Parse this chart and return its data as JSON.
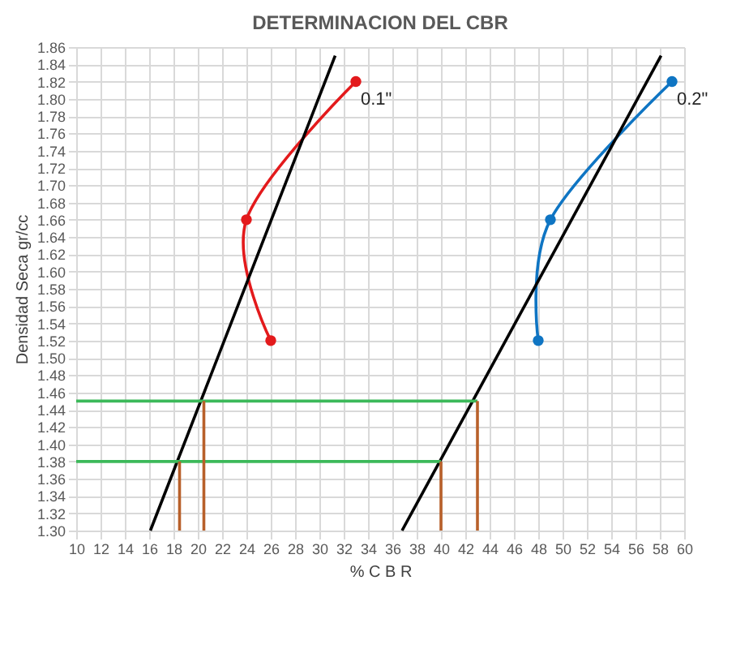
{
  "chart_data": {
    "type": "line",
    "title": "DETERMINACION DEL CBR",
    "xlabel": "% C B R",
    "ylabel": "Densidad Seca gr/cc",
    "xlim": [
      10,
      60
    ],
    "xticks": [
      10,
      12,
      14,
      16,
      18,
      20,
      22,
      24,
      26,
      28,
      30,
      32,
      34,
      36,
      38,
      40,
      42,
      44,
      46,
      48,
      50,
      52,
      54,
      56,
      58,
      60
    ],
    "ylim": [
      1.3,
      1.86
    ],
    "yticks": [
      {
        "value": 1.3,
        "label": "1.30"
      },
      {
        "value": 1.32,
        "label": "1.32"
      },
      {
        "value": 1.34,
        "label": "1.34"
      },
      {
        "value": 1.36,
        "label": "1.36"
      },
      {
        "value": 1.38,
        "label": "1.38"
      },
      {
        "value": 1.4,
        "label": "1.40"
      },
      {
        "value": 1.42,
        "label": "1.42"
      },
      {
        "value": 1.44,
        "label": "1.44"
      },
      {
        "value": 1.46,
        "label": "1.46"
      },
      {
        "value": 1.48,
        "label": "1.48"
      },
      {
        "value": 1.5,
        "label": "1.50"
      },
      {
        "value": 1.52,
        "label": "1.52"
      },
      {
        "value": 1.54,
        "label": "1.54"
      },
      {
        "value": 1.56,
        "label": "1.56"
      },
      {
        "value": 1.58,
        "label": "1.58"
      },
      {
        "value": 1.6,
        "label": "1.60"
      },
      {
        "value": 1.62,
        "label": "1.62"
      },
      {
        "value": 1.64,
        "label": "1.64"
      },
      {
        "value": 1.66,
        "label": "1.66"
      },
      {
        "value": 1.68,
        "label": "1.68"
      },
      {
        "value": 1.7,
        "label": "1.70"
      },
      {
        "value": 1.72,
        "label": "1.72"
      },
      {
        "value": 1.74,
        "label": "1.74"
      },
      {
        "value": 1.76,
        "label": "1.76"
      },
      {
        "value": 1.78,
        "label": "1.78"
      },
      {
        "value": 1.8,
        "label": "1.80"
      },
      {
        "value": 1.82,
        "label": "1.82"
      },
      {
        "value": 1.84,
        "label": "1.84"
      },
      {
        "value": 1.86,
        "label": "1.86"
      }
    ],
    "grid": true,
    "line_style": "solid",
    "series": [
      {
        "color": "#e31a1c",
        "marker": "circle",
        "x": [
          26,
          24,
          33
        ],
        "values": [
          1.52,
          1.66,
          1.82
        ]
      },
      {
        "color": "#0f75c3",
        "marker": "circle",
        "x": [
          48,
          49,
          59
        ],
        "values": [
          1.52,
          1.66,
          1.82
        ]
      },
      {
        "color": "#000000",
        "marker": "none",
        "x": [
          16.1,
          31.3
        ],
        "values": [
          1.3,
          1.85
        ]
      },
      {
        "color": "#000000",
        "marker": "none",
        "x": [
          36.8,
          58.1
        ],
        "values": [
          1.3,
          1.85
        ]
      },
      {
        "color": "#3cb95a",
        "marker": "none",
        "x": [
          10,
          43
        ],
        "values": [
          1.45,
          1.45
        ]
      },
      {
        "color": "#3cb95a",
        "marker": "none",
        "x": [
          10,
          40
        ],
        "values": [
          1.38,
          1.38
        ]
      },
      {
        "color": "#b8602a",
        "marker": "none",
        "x": [
          20.5,
          20.5
        ],
        "values": [
          1.3,
          1.45
        ]
      },
      {
        "color": "#b8602a",
        "marker": "none",
        "x": [
          18.5,
          18.5
        ],
        "values": [
          1.3,
          1.38
        ]
      },
      {
        "color": "#b8602a",
        "marker": "none",
        "x": [
          43,
          43
        ],
        "values": [
          1.3,
          1.45
        ]
      },
      {
        "color": "#b8602a",
        "marker": "none",
        "x": [
          40,
          40
        ],
        "values": [
          1.3,
          1.38
        ]
      }
    ],
    "annotations": [
      "0.1\"",
      "0.2\""
    ]
  }
}
